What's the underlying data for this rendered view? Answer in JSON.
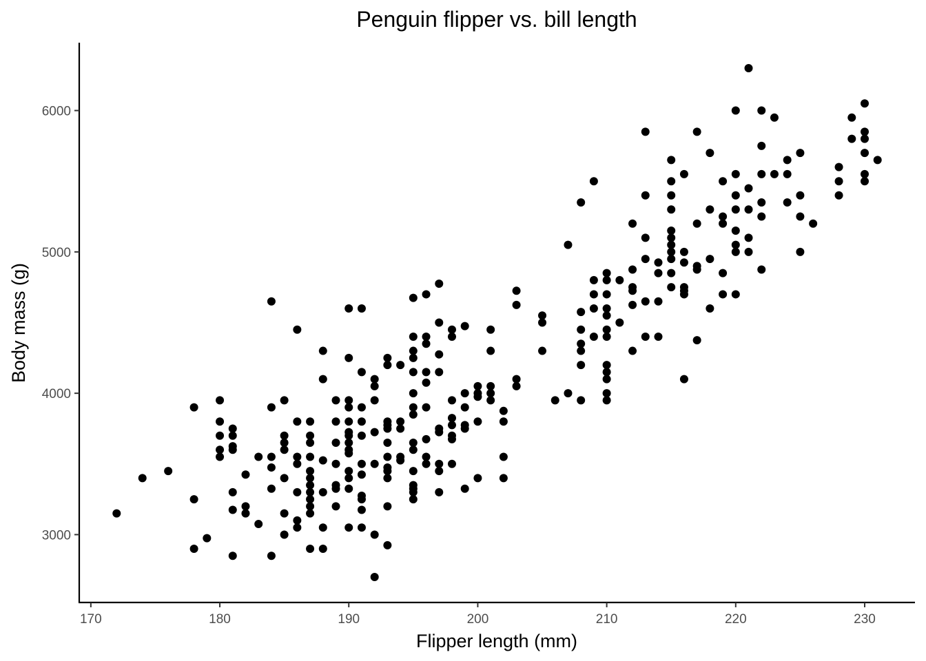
{
  "chart_data": {
    "type": "scatter",
    "title": "Penguin flipper vs. bill length",
    "xlabel": "Flipper length (mm)",
    "ylabel": "Body mass (g)",
    "xlim": [
      169.1,
      233.9
    ],
    "ylim": [
      2520,
      6480
    ],
    "xticks": [
      170,
      180,
      190,
      200,
      210,
      220,
      230
    ],
    "yticks": [
      3000,
      4000,
      5000,
      6000
    ],
    "grid": false,
    "legend": "none",
    "point_color": "#000000",
    "points": [
      [
        172,
        3150
      ],
      [
        174,
        3400
      ],
      [
        176,
        3450
      ],
      [
        178,
        3900
      ],
      [
        178,
        3250
      ],
      [
        178,
        2900
      ],
      [
        179,
        2975
      ],
      [
        180,
        3950
      ],
      [
        180,
        3800
      ],
      [
        180,
        3700
      ],
      [
        180,
        3600
      ],
      [
        180,
        3550
      ],
      [
        181,
        3750
      ],
      [
        181,
        3700
      ],
      [
        181,
        3625
      ],
      [
        181,
        3600
      ],
      [
        181,
        3300
      ],
      [
        181,
        3175
      ],
      [
        181,
        2850
      ],
      [
        182,
        3425
      ],
      [
        182,
        3200
      ],
      [
        182,
        3150
      ],
      [
        183,
        3550
      ],
      [
        183,
        3075
      ],
      [
        184,
        4650
      ],
      [
        184,
        3900
      ],
      [
        184,
        3550
      ],
      [
        184,
        3475
      ],
      [
        184,
        3325
      ],
      [
        184,
        2850
      ],
      [
        185,
        3950
      ],
      [
        185,
        3700
      ],
      [
        185,
        3650
      ],
      [
        185,
        3600
      ],
      [
        185,
        3400
      ],
      [
        185,
        3150
      ],
      [
        185,
        3000
      ],
      [
        186,
        4450
      ],
      [
        186,
        3800
      ],
      [
        186,
        3550
      ],
      [
        186,
        3500
      ],
      [
        186,
        3300
      ],
      [
        186,
        3100
      ],
      [
        186,
        3050
      ],
      [
        187,
        3800
      ],
      [
        187,
        3700
      ],
      [
        187,
        3650
      ],
      [
        187,
        3550
      ],
      [
        187,
        3450
      ],
      [
        187,
        3400
      ],
      [
        187,
        3350
      ],
      [
        187,
        3300
      ],
      [
        187,
        3250
      ],
      [
        187,
        3200
      ],
      [
        187,
        3150
      ],
      [
        187,
        2900
      ],
      [
        188,
        4300
      ],
      [
        188,
        4100
      ],
      [
        188,
        3525
      ],
      [
        188,
        3300
      ],
      [
        188,
        3050
      ],
      [
        188,
        2900
      ],
      [
        189,
        3950
      ],
      [
        189,
        3800
      ],
      [
        189,
        3650
      ],
      [
        189,
        3500
      ],
      [
        189,
        3350
      ],
      [
        189,
        3325
      ],
      [
        189,
        3200
      ],
      [
        190,
        4600
      ],
      [
        190,
        4250
      ],
      [
        190,
        3950
      ],
      [
        190,
        3900
      ],
      [
        190,
        3800
      ],
      [
        190,
        3725
      ],
      [
        190,
        3700
      ],
      [
        190,
        3650
      ],
      [
        190,
        3600
      ],
      [
        190,
        3575
      ],
      [
        190,
        3450
      ],
      [
        190,
        3400
      ],
      [
        190,
        3325
      ],
      [
        190,
        3050
      ],
      [
        191,
        4600
      ],
      [
        191,
        4150
      ],
      [
        191,
        3900
      ],
      [
        191,
        3800
      ],
      [
        191,
        3700
      ],
      [
        191,
        3500
      ],
      [
        191,
        3425
      ],
      [
        191,
        3275
      ],
      [
        191,
        3250
      ],
      [
        191,
        3175
      ],
      [
        191,
        3050
      ],
      [
        192,
        4100
      ],
      [
        192,
        4050
      ],
      [
        192,
        3950
      ],
      [
        192,
        3725
      ],
      [
        192,
        3500
      ],
      [
        192,
        3000
      ],
      [
        192,
        2700
      ],
      [
        193,
        4250
      ],
      [
        193,
        4200
      ],
      [
        193,
        3800
      ],
      [
        193,
        3775
      ],
      [
        193,
        3750
      ],
      [
        193,
        3650
      ],
      [
        193,
        3550
      ],
      [
        193,
        3475
      ],
      [
        193,
        3450
      ],
      [
        193,
        3400
      ],
      [
        193,
        3200
      ],
      [
        193,
        2925
      ],
      [
        194,
        4200
      ],
      [
        194,
        3800
      ],
      [
        194,
        3750
      ],
      [
        194,
        3550
      ],
      [
        194,
        3525
      ],
      [
        195,
        4675
      ],
      [
        195,
        4400
      ],
      [
        195,
        4300
      ],
      [
        195,
        4250
      ],
      [
        195,
        4150
      ],
      [
        195,
        4000
      ],
      [
        195,
        3900
      ],
      [
        195,
        3850
      ],
      [
        195,
        3650
      ],
      [
        195,
        3600
      ],
      [
        195,
        3450
      ],
      [
        195,
        3350
      ],
      [
        195,
        3325
      ],
      [
        195,
        3300
      ],
      [
        195,
        3250
      ],
      [
        196,
        4700
      ],
      [
        196,
        4400
      ],
      [
        196,
        4350
      ],
      [
        196,
        4150
      ],
      [
        196,
        4075
      ],
      [
        196,
        3900
      ],
      [
        196,
        3675
      ],
      [
        196,
        3550
      ],
      [
        196,
        3500
      ],
      [
        197,
        4775
      ],
      [
        197,
        4500
      ],
      [
        197,
        4275
      ],
      [
        197,
        4150
      ],
      [
        197,
        3750
      ],
      [
        197,
        3725
      ],
      [
        197,
        3500
      ],
      [
        197,
        3450
      ],
      [
        197,
        3300
      ],
      [
        198,
        4450
      ],
      [
        198,
        4400
      ],
      [
        198,
        3950
      ],
      [
        198,
        3825
      ],
      [
        198,
        3775
      ],
      [
        198,
        3700
      ],
      [
        198,
        3675
      ],
      [
        198,
        3500
      ],
      [
        199,
        4475
      ],
      [
        199,
        4000
      ],
      [
        199,
        3900
      ],
      [
        199,
        3775
      ],
      [
        199,
        3750
      ],
      [
        199,
        3325
      ],
      [
        200,
        4050
      ],
      [
        200,
        4000
      ],
      [
        200,
        3975
      ],
      [
        200,
        3800
      ],
      [
        200,
        3400
      ],
      [
        201,
        4450
      ],
      [
        201,
        4300
      ],
      [
        201,
        4050
      ],
      [
        201,
        4000
      ],
      [
        201,
        3950
      ],
      [
        202,
        3875
      ],
      [
        202,
        3800
      ],
      [
        202,
        3550
      ],
      [
        202,
        3400
      ],
      [
        203,
        4725
      ],
      [
        203,
        4625
      ],
      [
        203,
        4100
      ],
      [
        203,
        4050
      ],
      [
        205,
        4550
      ],
      [
        205,
        4500
      ],
      [
        205,
        4300
      ],
      [
        206,
        3950
      ],
      [
        207,
        5050
      ],
      [
        207,
        4000
      ],
      [
        208,
        5350
      ],
      [
        208,
        4575
      ],
      [
        208,
        4450
      ],
      [
        208,
        4350
      ],
      [
        208,
        4300
      ],
      [
        208,
        4200
      ],
      [
        208,
        3950
      ],
      [
        209,
        5500
      ],
      [
        209,
        4800
      ],
      [
        209,
        4700
      ],
      [
        209,
        4600
      ],
      [
        209,
        4400
      ],
      [
        210,
        4850
      ],
      [
        210,
        4800
      ],
      [
        210,
        4700
      ],
      [
        210,
        4600
      ],
      [
        210,
        4550
      ],
      [
        210,
        4450
      ],
      [
        210,
        4400
      ],
      [
        210,
        4200
      ],
      [
        210,
        4150
      ],
      [
        210,
        4100
      ],
      [
        210,
        4000
      ],
      [
        210,
        3950
      ],
      [
        211,
        4800
      ],
      [
        211,
        4500
      ],
      [
        212,
        5200
      ],
      [
        212,
        4875
      ],
      [
        212,
        4750
      ],
      [
        212,
        4725
      ],
      [
        212,
        4625
      ],
      [
        212,
        4300
      ],
      [
        213,
        5850
      ],
      [
        213,
        5400
      ],
      [
        213,
        5100
      ],
      [
        213,
        4950
      ],
      [
        213,
        4650
      ],
      [
        213,
        4400
      ],
      [
        214,
        4925
      ],
      [
        214,
        4850
      ],
      [
        214,
        4650
      ],
      [
        214,
        4400
      ],
      [
        215,
        5650
      ],
      [
        215,
        5500
      ],
      [
        215,
        5400
      ],
      [
        215,
        5300
      ],
      [
        215,
        5150
      ],
      [
        215,
        5100
      ],
      [
        215,
        5050
      ],
      [
        215,
        5000
      ],
      [
        215,
        4950
      ],
      [
        215,
        4850
      ],
      [
        215,
        4750
      ],
      [
        216,
        5550
      ],
      [
        216,
        5000
      ],
      [
        216,
        4925
      ],
      [
        216,
        4750
      ],
      [
        216,
        4725
      ],
      [
        216,
        4700
      ],
      [
        216,
        4100
      ],
      [
        217,
        5850
      ],
      [
        217,
        5200
      ],
      [
        217,
        4900
      ],
      [
        217,
        4875
      ],
      [
        217,
        4375
      ],
      [
        218,
        5700
      ],
      [
        218,
        5300
      ],
      [
        218,
        4950
      ],
      [
        218,
        4600
      ],
      [
        219,
        5500
      ],
      [
        219,
        5250
      ],
      [
        219,
        5200
      ],
      [
        219,
        4850
      ],
      [
        219,
        4700
      ],
      [
        220,
        6000
      ],
      [
        220,
        5550
      ],
      [
        220,
        5400
      ],
      [
        220,
        5300
      ],
      [
        220,
        5150
      ],
      [
        220,
        5050
      ],
      [
        220,
        5000
      ],
      [
        220,
        4700
      ],
      [
        221,
        6300
      ],
      [
        221,
        5450
      ],
      [
        221,
        5300
      ],
      [
        221,
        5100
      ],
      [
        221,
        5000
      ],
      [
        222,
        6000
      ],
      [
        222,
        5750
      ],
      [
        222,
        5550
      ],
      [
        222,
        5350
      ],
      [
        222,
        5250
      ],
      [
        222,
        4875
      ],
      [
        223,
        5950
      ],
      [
        223,
        5550
      ],
      [
        224,
        5650
      ],
      [
        224,
        5550
      ],
      [
        224,
        5350
      ],
      [
        225,
        5700
      ],
      [
        225,
        5400
      ],
      [
        225,
        5250
      ],
      [
        225,
        5000
      ],
      [
        226,
        5200
      ],
      [
        228,
        5600
      ],
      [
        228,
        5500
      ],
      [
        228,
        5400
      ],
      [
        229,
        5950
      ],
      [
        229,
        5800
      ],
      [
        230,
        6050
      ],
      [
        230,
        5850
      ],
      [
        230,
        5800
      ],
      [
        230,
        5700
      ],
      [
        230,
        5550
      ],
      [
        230,
        5500
      ],
      [
        231,
        5650
      ]
    ]
  }
}
